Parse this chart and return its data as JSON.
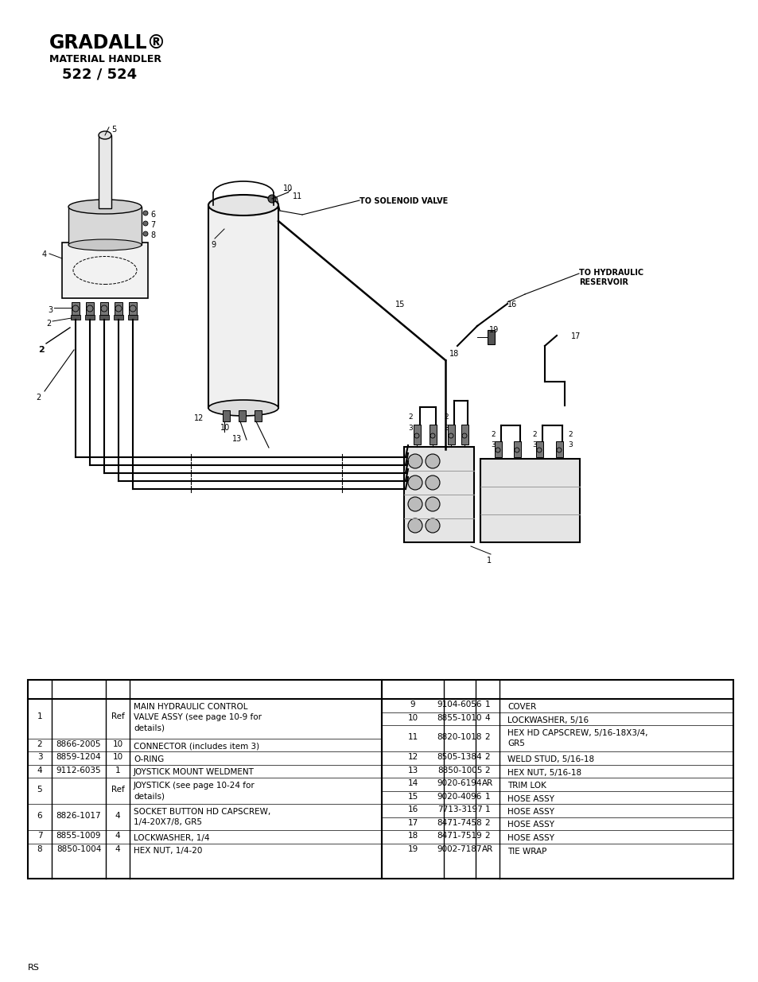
{
  "page_bg": "#ffffff",
  "logo_text": "GRADALL®",
  "logo_sub1": "MATERIAL HANDLER",
  "logo_sub2": "522 / 524",
  "footer_text": "RS",
  "table_left": [
    {
      "item": "1",
      "part": "",
      "qty": "Ref",
      "desc": "MAIN HYDRAULIC CONTROL\nVALVE ASSY (see page 10-9 for\ndetails)"
    },
    {
      "item": "2",
      "part": "8866-2005",
      "qty": "10",
      "desc": "CONNECTOR (includes item 3)"
    },
    {
      "item": "3",
      "part": "8859-1204",
      "qty": "10",
      "desc": "O-RING"
    },
    {
      "item": "4",
      "part": "9112-6035",
      "qty": "1",
      "desc": "JOYSTICK MOUNT WELDMENT"
    },
    {
      "item": "5",
      "part": "",
      "qty": "Ref",
      "desc": "JOYSTICK (see page 10-24 for\ndetails)"
    },
    {
      "item": "6",
      "part": "8826-1017",
      "qty": "4",
      "desc": "SOCKET BUTTON HD CAPSCREW,\n1/4-20X7/8, GR5"
    },
    {
      "item": "7",
      "part": "8855-1009",
      "qty": "4",
      "desc": "LOCKWASHER, 1/4"
    },
    {
      "item": "8",
      "part": "8850-1004",
      "qty": "4",
      "desc": "HEX NUT, 1/4-20"
    }
  ],
  "table_right": [
    {
      "item": "9",
      "part": "9104-6056",
      "qty": "1",
      "desc": "COVER"
    },
    {
      "item": "10",
      "part": "8855-1010",
      "qty": "4",
      "desc": "LOCKWASHER, 5/16"
    },
    {
      "item": "11",
      "part": "8820-1018",
      "qty": "2",
      "desc": "HEX HD CAPSCREW, 5/16-18X3/4,\nGR5"
    },
    {
      "item": "12",
      "part": "8505-1384",
      "qty": "2",
      "desc": "WELD STUD, 5/16-18"
    },
    {
      "item": "13",
      "part": "8850-1005",
      "qty": "2",
      "desc": "HEX NUT, 5/16-18"
    },
    {
      "item": "14",
      "part": "9020-6194",
      "qty": "AR",
      "desc": "TRIM LOK"
    },
    {
      "item": "15",
      "part": "9020-4096",
      "qty": "1",
      "desc": "HOSE ASSY"
    },
    {
      "item": "16",
      "part": "7713-3197",
      "qty": "1",
      "desc": "HOSE ASSY"
    },
    {
      "item": "17",
      "part": "8471-7458",
      "qty": "2",
      "desc": "HOSE ASSY"
    },
    {
      "item": "18",
      "part": "8471-7519",
      "qty": "2",
      "desc": "HOSE ASSY"
    },
    {
      "item": "19",
      "part": "9002-7187",
      "qty": "AR",
      "desc": "TIE WRAP"
    }
  ]
}
